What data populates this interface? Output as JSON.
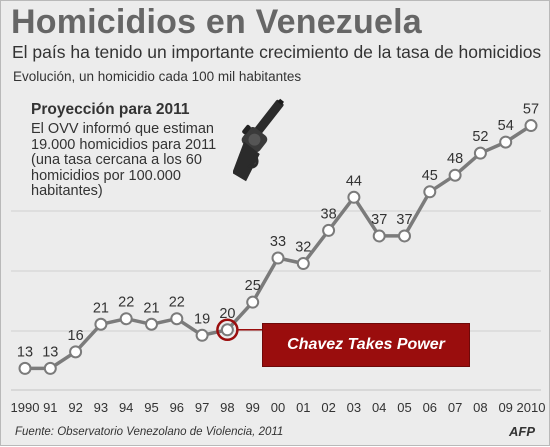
{
  "header": {
    "title": "Homicidios en Venezuela",
    "subtitle": "El país ha tenido un importante crecimiento de la tasa de homicidios",
    "caption": "Evolución, un homicidio cada 100 mil habitantes"
  },
  "projection_note": {
    "heading": "Proyección para 2011",
    "body": "El OVV informó que estiman\n19.000 homicidios para 2011\n(una tasa cercana a los 60\nhomicidios por 100.000\nhabitantes)"
  },
  "annotation": {
    "label": "Chavez Takes Power",
    "year": "98",
    "color": "#9a0d0d"
  },
  "footer": {
    "source": "Fuente: Observatorio Venezolano de Violencia, 2011",
    "agency": "AFP"
  },
  "icons": {
    "illustration": "revolver-icon"
  },
  "colors": {
    "line": "#7b7b7b",
    "marker_fill": "#ffffff",
    "background": "#ececec",
    "highlight": "#9a0d0d"
  },
  "chart_data": {
    "type": "line",
    "categories": [
      "1990",
      "91",
      "92",
      "93",
      "94",
      "95",
      "96",
      "97",
      "98",
      "99",
      "00",
      "01",
      "02",
      "03",
      "04",
      "05",
      "06",
      "07",
      "08",
      "09",
      "2010"
    ],
    "values": [
      13,
      13,
      16,
      21,
      22,
      21,
      22,
      19,
      20,
      25,
      33,
      32,
      38,
      44,
      37,
      37,
      45,
      48,
      52,
      54,
      57
    ],
    "data_labels": [
      "13",
      "13",
      "16",
      "21",
      "22",
      "21",
      "22",
      "19",
      "20",
      "25",
      "33",
      "32",
      "38",
      "44",
      "37",
      "37",
      "45",
      "48",
      "52",
      "54",
      "57"
    ],
    "title": "Homicidios en Venezuela",
    "xlabel": "",
    "ylabel": "",
    "ylim": [
      8,
      60
    ],
    "grid": true,
    "highlight_category": "98"
  }
}
